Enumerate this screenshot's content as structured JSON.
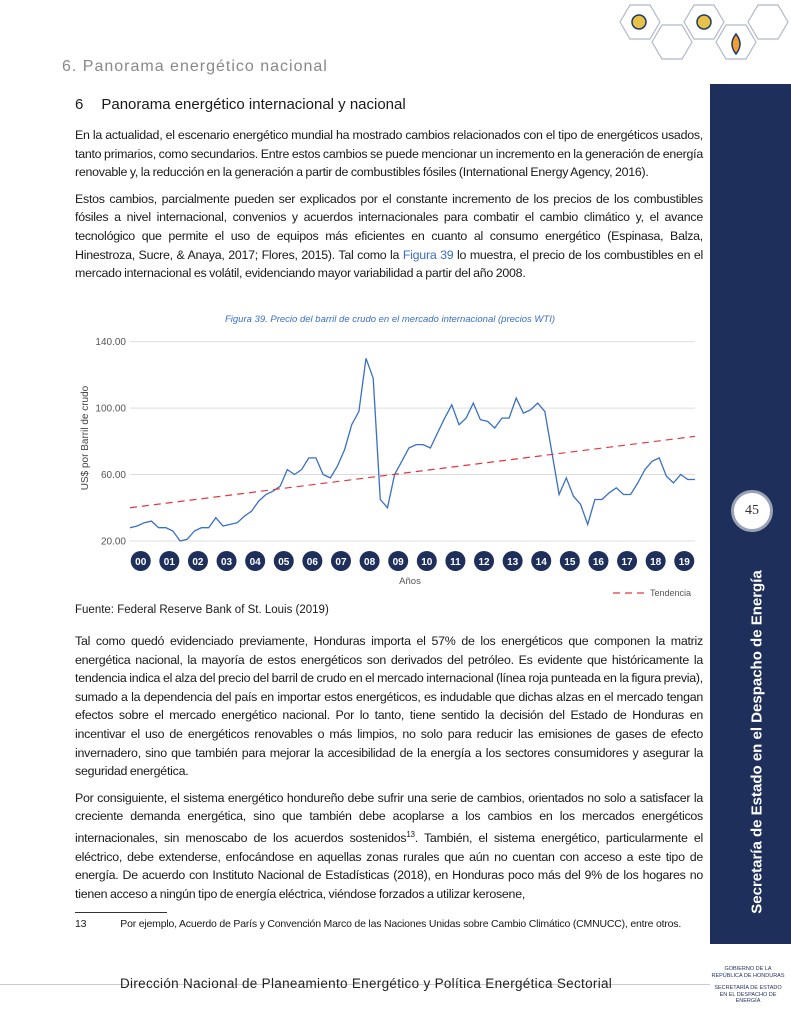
{
  "header": {
    "section": "6. Panorama energético nacional"
  },
  "heading": {
    "number": "6",
    "title": "Panorama energético internacional y nacional"
  },
  "paragraphs": [
    {
      "text": "En la actualidad, el escenario energético mundial ha mostrado cambios relacionados con el tipo de energéticos usados, tanto primarios, como secundarios. Entre estos cambios se puede mencionar un incremento en la generación de energía renovable y, la reducción en la generación a partir de combustibles fósiles (International Energy Agency, 2016)."
    },
    {
      "before": "Estos cambios, parcialmente pueden ser explicados por el constante incremento de los precios de los combustibles fósiles a nivel internacional, convenios y acuerdos internacionales para combatir el cambio climático y, el avance tecnológico que permite el uso de equipos más eficientes en cuanto al consumo energético (Espinasa, Balza, Hinestroza, Sucre, & Anaya, 2017; Flores, 2015). Tal como la ",
      "link": "Figura 39",
      "after": " lo muestra, el precio de los combustibles en el mercado internacional es volátil, evidenciando mayor variabilidad a partir del año 2008."
    }
  ],
  "chart_data": {
    "type": "line",
    "title": "Figura 39. Precio del barril de crudo en el mercado internacional (precios WTI)",
    "y_label": "US$ por Barril de crudo",
    "x_label": "Años",
    "categories": [
      "00",
      null,
      null,
      null,
      "01",
      null,
      null,
      null,
      "02",
      null,
      null,
      null,
      "03",
      null,
      null,
      null,
      "04",
      null,
      null,
      null,
      "05",
      null,
      null,
      null,
      "06",
      null,
      null,
      null,
      "07",
      null,
      null,
      null,
      "08",
      null,
      null,
      null,
      "09",
      null,
      null,
      null,
      "10",
      null,
      null,
      null,
      "11",
      null,
      null,
      null,
      "12",
      null,
      null,
      null,
      "13",
      null,
      null,
      null,
      "14",
      null,
      null,
      null,
      "15",
      null,
      null,
      null,
      "16",
      null,
      null,
      null,
      "17",
      null,
      null,
      null,
      "18",
      null,
      null,
      null,
      "19",
      null,
      null,
      null
    ],
    "series": [
      {
        "name": "WTI",
        "color": "#3a6fc4",
        "values": [
          28,
          29,
          31,
          32,
          28,
          28,
          26,
          20,
          21,
          26,
          28,
          28,
          34,
          29,
          30,
          31,
          35,
          38,
          44,
          48,
          50,
          53,
          63,
          60,
          63,
          70,
          70,
          60,
          58,
          65,
          75,
          90,
          98,
          130,
          118,
          45,
          40,
          60,
          68,
          76,
          78,
          78,
          76,
          85,
          94,
          102,
          90,
          94,
          103,
          93,
          92,
          88,
          94,
          94,
          106,
          97,
          99,
          103,
          98,
          73,
          48,
          58,
          47,
          42,
          30,
          45,
          45,
          49,
          52,
          48,
          48,
          55,
          63,
          68,
          70,
          59,
          55,
          60,
          57,
          57
        ]
      }
    ],
    "trend": {
      "name": "Tendencia",
      "color": "#e0393e",
      "start": 40,
      "end": 83
    },
    "ylim": [
      20,
      144
    ],
    "yticks": [
      {
        "value": 20,
        "label": "20.00"
      },
      {
        "value": 60,
        "label": "60.00"
      },
      {
        "value": 100,
        "label": "100.00"
      },
      {
        "value": 140,
        "label": "140.00"
      }
    ],
    "grid": true
  },
  "source": "Fuente: Federal Reserve Bank of St. Louis (2019)",
  "paragraphs2": [
    {
      "text": "Tal como quedó evidenciado previamente, Honduras importa el 57% de los energéticos que componen la matriz energética nacional, la mayoría de estos energéticos son derivados del petróleo. Es evidente que históricamente la tendencia indica el alza del precio del barril de crudo en el mercado internacional (línea roja punteada en la figura previa), sumado a la dependencia del país en importar estos energéticos, es indudable que dichas alzas en el mercado tengan efectos sobre el mercado energético nacional. Por lo tanto, tiene sentido la decisión del Estado de Honduras en incentivar el uso de energéticos renovables o más limpios, no solo para reducir las emisiones de gases de efecto invernadero, sino que también para mejorar la accesibilidad de la energía a los sectores consumidores y asegurar la seguridad energética."
    },
    {
      "before": "Por consiguiente, el sistema energético hondureño debe sufrir una serie de cambios, orientados no solo a satisfacer la creciente demanda energética, sino que también debe acoplarse a los cambios en los mercados energéticos internacionales, sin menoscabo de los acuerdos sostenidos",
      "sup": "13",
      "after": ". También, el sistema energético, particularmente el eléctrico, debe extenderse, enfocándose en aquellas zonas rurales que aún no cuentan con acceso a este tipo de energía. De acuerdo con Instituto Nacional de Estadísticas (2018), en Honduras poco más del 9% de los hogares no tienen acceso a ningún tipo de energía eléctrica, viéndose forzados a utilizar kerosene,"
    }
  ],
  "footnote": {
    "number": "13",
    "text": "Por ejemplo, Acuerdo de París y Convención Marco de las Naciones Unidas sobre Cambio Climático (CMNUCC), entre otros."
  },
  "sidebar": {
    "page_number": "45",
    "text": "Secretaría de Estado en el Despacho de Energía"
  },
  "footer": {
    "text": "Dirección Nacional de Planeamiento Energético y Política Energética Sectorial",
    "logo_line1": "Gobierno de la",
    "logo_line2": "República de Honduras",
    "logo_line3": "Secretaría de Estado",
    "logo_line4": "en el Despacho de Energía"
  }
}
